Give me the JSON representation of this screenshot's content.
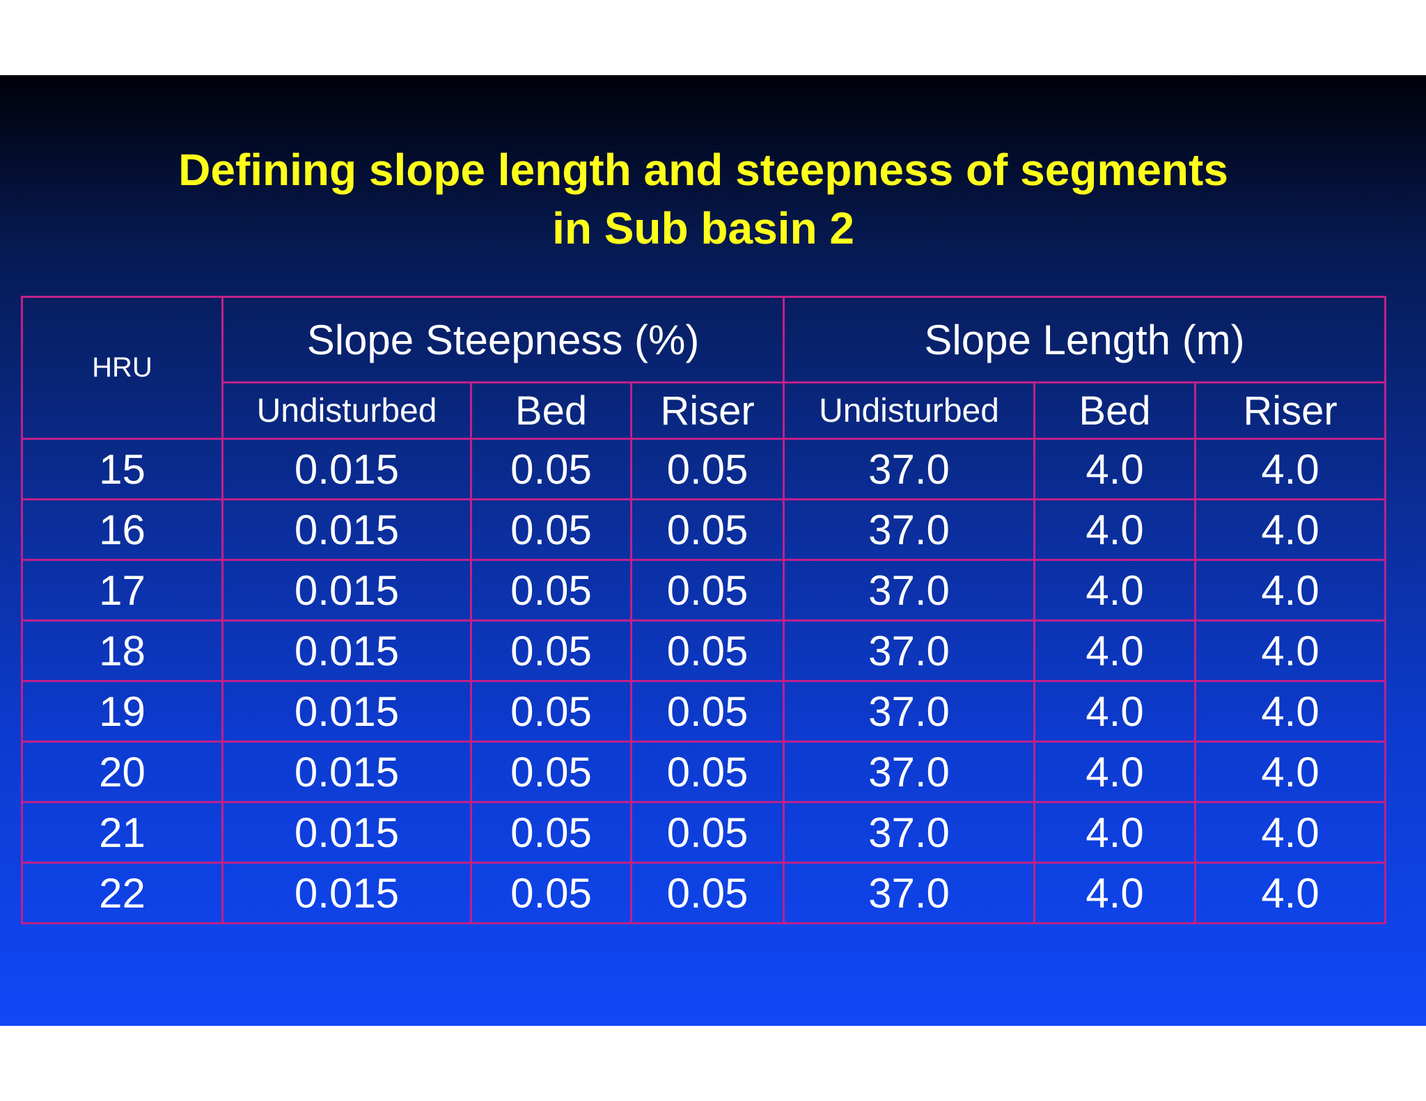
{
  "title": {
    "line1": "Defining slope length and steepness of segments",
    "line2": "in Sub basin 2"
  },
  "table": {
    "hru_header": "HRU",
    "group_headers": [
      "Slope Steepness (%)",
      "Slope Length (m)"
    ],
    "sub_headers": [
      "Undisturbed",
      "Bed",
      "Riser",
      "Undisturbed",
      "Bed",
      "Riser"
    ],
    "rows": [
      [
        "15",
        "0.015",
        "0.05",
        "0.05",
        "37.0",
        "4.0",
        "4.0"
      ],
      [
        "16",
        "0.015",
        "0.05",
        "0.05",
        "37.0",
        "4.0",
        "4.0"
      ],
      [
        "17",
        "0.015",
        "0.05",
        "0.05",
        "37.0",
        "4.0",
        "4.0"
      ],
      [
        "18",
        "0.015",
        "0.05",
        "0.05",
        "37.0",
        "4.0",
        "4.0"
      ],
      [
        "19",
        "0.015",
        "0.05",
        "0.05",
        "37.0",
        "4.0",
        "4.0"
      ],
      [
        "20",
        "0.015",
        "0.05",
        "0.05",
        "37.0",
        "4.0",
        "4.0"
      ],
      [
        "21",
        "0.015",
        "0.05",
        "0.05",
        "37.0",
        "4.0",
        "4.0"
      ],
      [
        "22",
        "0.015",
        "0.05",
        "0.05",
        "37.0",
        "4.0",
        "4.0"
      ]
    ]
  },
  "colors": {
    "title": "#ffff1a",
    "grid": "#c0208a",
    "text": "#ffffff"
  }
}
